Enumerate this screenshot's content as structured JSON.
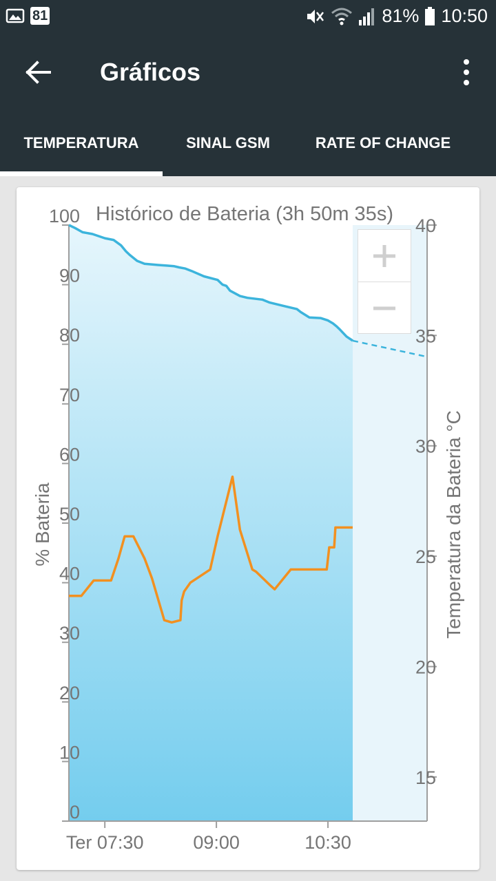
{
  "status_bar": {
    "notification_count": "81",
    "battery_percent": "81%",
    "time": "10:50",
    "icons": [
      "image-icon",
      "mute-icon",
      "wifi-icon",
      "signal-icon",
      "battery-icon"
    ]
  },
  "app_bar": {
    "title": "Gráficos",
    "back_icon": "arrow-back-icon",
    "menu_icon": "more-vert-icon"
  },
  "tabs": [
    {
      "label": "TEMPERATURA",
      "selected": true
    },
    {
      "label": "SINAL GSM",
      "selected": false
    },
    {
      "label": "RATE OF CHANGE",
      "selected": false
    }
  ],
  "colors": {
    "bar_bg": "#263238",
    "battery_line": "#3cb4dc",
    "temperature_line": "#f29020",
    "area_top": "#e6f6fc",
    "area_bottom": "#74cdee",
    "axis_text": "#757575"
  },
  "zoom": {
    "in_icon": "plus-icon",
    "out_icon": "minus-icon"
  },
  "chart_data": {
    "type": "line",
    "title": "Histórico de Bateria (3h 50m 35s)",
    "ylabel": "% Bateria",
    "y2label": "Temperatura da Bateria °C",
    "ylim": [
      0,
      100
    ],
    "y2lim": [
      13,
      40
    ],
    "yticks": [
      "0",
      "10",
      "20",
      "30",
      "40",
      "50",
      "60",
      "70",
      "80",
      "90",
      "100"
    ],
    "y2ticks": [
      "15",
      "20",
      "25",
      "30",
      "35",
      "40"
    ],
    "xticks": [
      "Ter 07:30",
      "09:00",
      "10:30"
    ],
    "x_tick_minutes": [
      450,
      540,
      630
    ],
    "xlim_minutes": [
      421,
      710
    ],
    "now_minute": 650,
    "series": [
      {
        "name": "% Bateria",
        "axis": "left",
        "x_minutes": [
          421,
          426,
          432,
          440,
          450,
          457,
          463,
          467,
          470,
          476,
          482,
          493,
          500,
          506,
          510,
          515,
          520,
          530,
          541,
          545,
          548,
          551,
          559,
          565,
          577,
          583,
          595,
          605,
          608,
          615,
          624,
          630,
          634,
          637,
          640,
          645,
          650
        ],
        "values": [
          100,
          99.5,
          98.8,
          98.5,
          97.8,
          97.5,
          96.6,
          95.6,
          95,
          94,
          93.5,
          93.3,
          93.2,
          93.1,
          92.9,
          92.7,
          92.3,
          91.4,
          90.8,
          90,
          89.8,
          89,
          88.1,
          87.8,
          87.5,
          87,
          86.4,
          85.9,
          85.4,
          84.5,
          84.4,
          84,
          83.5,
          83,
          82.4,
          81.3,
          80.6
        ],
        "projection_x_minutes": [
          650,
          710
        ],
        "projection_values": [
          80.6,
          77.9
        ]
      },
      {
        "name": "Temperatura da Bateria",
        "axis": "right",
        "x_minutes": [
          421,
          431,
          441,
          455,
          461,
          466,
          473,
          482,
          488,
          498,
          504,
          511,
          512,
          514,
          519,
          535,
          541,
          553,
          559,
          569,
          572,
          583,
          587,
          600,
          609,
          629,
          631,
          635,
          636,
          650
        ],
        "values": [
          23.2,
          23.2,
          23.9,
          23.9,
          24.9,
          25.9,
          25.9,
          24.9,
          24,
          22.1,
          22,
          22.1,
          23,
          23.4,
          23.8,
          24.4,
          25.9,
          28.6,
          26.2,
          24.4,
          24.3,
          23.7,
          23.5,
          24.4,
          24.4,
          24.4,
          25.4,
          25.4,
          26.3,
          26.3
        ]
      }
    ]
  }
}
